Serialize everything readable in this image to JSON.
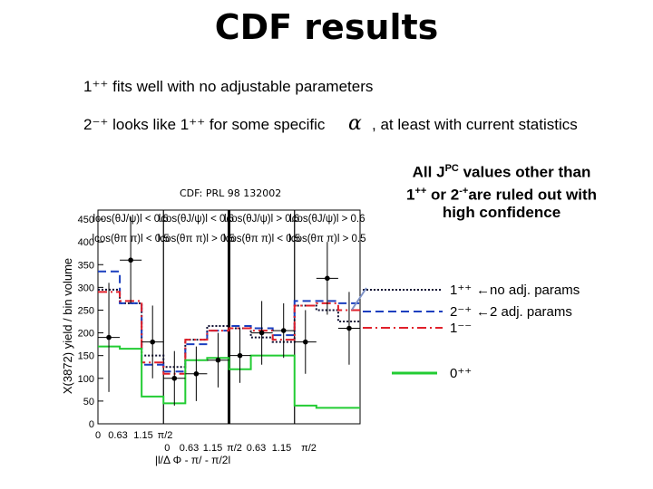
{
  "slide": {
    "title": "CDF results",
    "line1": "1⁺⁺ fits well with no adjustable parameters",
    "line2_prefix": "2⁻⁺ looks like 1⁺⁺ for some specific",
    "line2_symbol": "α",
    "line2_suffix": ",  at least with current statistics",
    "reference": "CDF: PRL 98 132002",
    "callout": {
      "part1": "All J",
      "part1_sup": "PC",
      "part2": " values other than 1",
      "part2_sup": "++",
      "part3": " or 2",
      "part3_sup": "-+",
      "part4": "are ruled out with high confidence"
    }
  },
  "colors": {
    "jp_1pp": "#111133",
    "jp_2mp": "#1a3fbf",
    "jp_1mm": "#e0202a",
    "jp_0pp": "#22cc33"
  },
  "chart_data": {
    "type": "line",
    "ylabel": "X(3872) yield / bin volume",
    "xlabel": "|l/Δ Φ - π/ - π/2l",
    "ylim": [
      0,
      470
    ],
    "y_ticks": [
      "0",
      "50",
      "100",
      "150",
      "200",
      "250",
      "300",
      "350",
      "400",
      "450"
    ],
    "panels": [
      {
        "label_top": "lcos(θJ/ψ)l < 0.6",
        "label_sub": "lcos(θπ π)l < 0.5"
      },
      {
        "label_top": "lcos(θJ/ψ)l < 0.6",
        "label_sub": "lcos(θπ π)l > 0.5"
      },
      {
        "label_top": "lcos(θJ/ψ)l > 0.6",
        "label_sub": "lcos(θπ π)l < 0.5"
      },
      {
        "label_top": "lcos(θJ/ψ)l > 0.6",
        "label_sub": "lcos(θπ π)l > 0.5"
      }
    ],
    "x_ticks_top_row": [
      "0",
      "0.63",
      "1.15",
      "π/2"
    ],
    "x_ticks_bottom_row": [
      "0",
      "0.63",
      "1.15",
      "π/2",
      "0.63",
      "1.15",
      "π/2"
    ],
    "bins_per_panel": 3,
    "data_points": [
      {
        "y": 190,
        "err": 120
      },
      {
        "y": 360,
        "err": 95
      },
      {
        "y": 180,
        "err": 80
      },
      {
        "y": 100,
        "err": 60
      },
      {
        "y": 110,
        "err": 60
      },
      {
        "y": 140,
        "err": 60
      },
      {
        "y": 150,
        "err": 60
      },
      {
        "y": 200,
        "err": 70
      },
      {
        "y": 205,
        "err": 60
      },
      {
        "y": 180,
        "err": 70
      },
      {
        "y": 320,
        "err": 80
      },
      {
        "y": 210,
        "err": 80
      }
    ],
    "series": [
      {
        "name": "1⁺⁺",
        "legend_note": "no adj. params",
        "style": "dotted",
        "color": "#111133",
        "values": [
          295,
          265,
          150,
          125,
          185,
          215,
          210,
          190,
          180,
          260,
          250,
          225
        ]
      },
      {
        "name": "2⁻⁺",
        "legend_note": "2 adj. params",
        "style": "dashed",
        "color": "#1a3fbf",
        "values": [
          335,
          265,
          130,
          115,
          175,
          205,
          215,
          210,
          195,
          270,
          270,
          265
        ]
      },
      {
        "name": "1⁻⁻",
        "legend_note": "",
        "style": "dashdot",
        "color": "#e0202a",
        "values": [
          290,
          270,
          135,
          110,
          185,
          205,
          210,
          205,
          185,
          260,
          265,
          250
        ]
      },
      {
        "name": "0⁺⁺",
        "legend_note": "",
        "style": "solid",
        "color": "#22cc33",
        "values": [
          170,
          165,
          60,
          45,
          140,
          145,
          120,
          150,
          150,
          40,
          35,
          35
        ]
      }
    ]
  }
}
